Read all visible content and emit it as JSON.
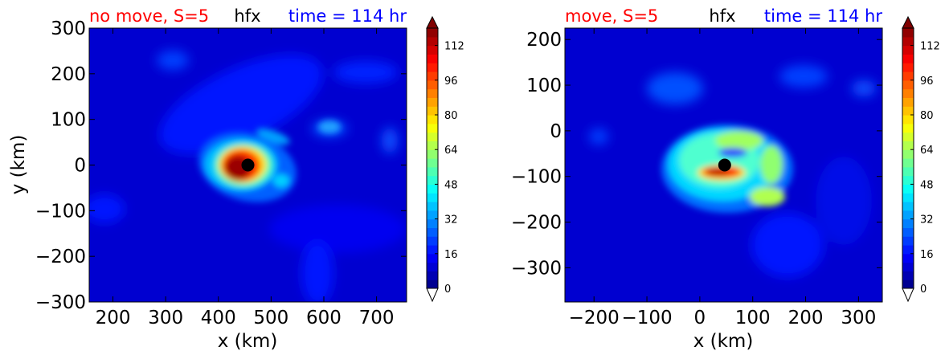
{
  "chart_data": [
    {
      "type": "heatmap",
      "title_left": "no move, S=5",
      "title_center": "hfx",
      "title_right": "time = 114 hr",
      "title_left_color": "#ff0000",
      "title_center_color": "#000000",
      "title_right_color": "#0000ff",
      "xlabel": "x (km)",
      "ylabel": "y (km)",
      "xlim": [
        155,
        757
      ],
      "ylim": [
        -300,
        300
      ],
      "xticks": [
        200,
        300,
        400,
        500,
        600,
        700
      ],
      "yticks": [
        -300,
        -200,
        -100,
        0,
        100,
        200,
        300
      ],
      "xtick_labels": [
        "200",
        "300",
        "400",
        "500",
        "600",
        "700"
      ],
      "ytick_labels": [
        "−300",
        "−200",
        "−100",
        "0",
        "100",
        "200",
        "300"
      ],
      "center_marker": {
        "x": 456,
        "y": 0,
        "color": "#000000"
      },
      "colorbar": {
        "min": 0,
        "max": 120,
        "ticks": [
          0,
          16,
          32,
          48,
          64,
          80,
          96,
          112
        ],
        "tick_labels": [
          "0",
          "16",
          "32",
          "48",
          "64",
          "80",
          "96",
          "112"
        ],
        "extend": "both",
        "colormap": "jet"
      }
    },
    {
      "type": "heatmap",
      "title_left": "move, S=5",
      "title_center": "hfx",
      "title_right": "time = 114 hr",
      "title_left_color": "#ff0000",
      "title_center_color": "#000000",
      "title_right_color": "#0000ff",
      "xlabel": "x (km)",
      "ylabel": "",
      "xlim": [
        -255,
        345
      ],
      "ylim": [
        -375,
        225
      ],
      "xticks": [
        -200,
        -100,
        0,
        100,
        200,
        300
      ],
      "yticks": [
        -300,
        -200,
        -100,
        0,
        100,
        200
      ],
      "xtick_labels": [
        "−200",
        "−100",
        "0",
        "100",
        "200",
        "300"
      ],
      "ytick_labels": [
        "−300",
        "−200",
        "−100",
        "0",
        "100",
        "200"
      ],
      "center_marker": {
        "x": 47,
        "y": -75,
        "color": "#000000"
      },
      "colorbar": {
        "min": 0,
        "max": 120,
        "ticks": [
          0,
          16,
          32,
          48,
          64,
          80,
          96,
          112
        ],
        "tick_labels": [
          "0",
          "16",
          "32",
          "48",
          "64",
          "80",
          "96",
          "112"
        ],
        "extend": "both",
        "colormap": "jet"
      }
    }
  ]
}
